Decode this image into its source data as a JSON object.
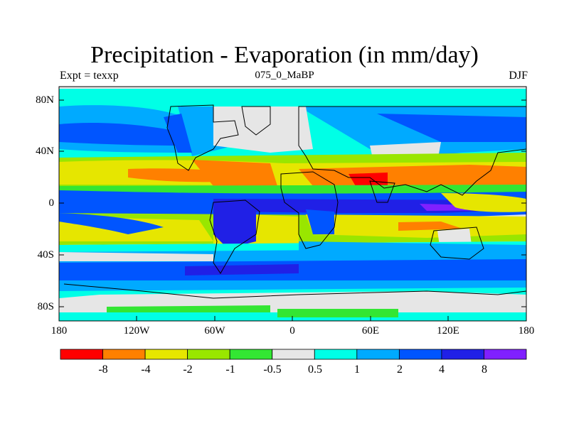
{
  "title": "Precipitation - Evaporation (in mm/day)",
  "subtitle_left": "Expt = texxp",
  "subtitle_center": "075_0_MaBP",
  "subtitle_right": "DJF",
  "lat_ticks": [
    "80N",
    "40N",
    "0",
    "40S",
    "80S"
  ],
  "lon_ticks": [
    "180",
    "120W",
    "60W",
    "0",
    "60E",
    "120E",
    "180"
  ],
  "colorbar": {
    "colors": [
      "#ff0000",
      "#ff8000",
      "#e6e600",
      "#99e600",
      "#33e633",
      "#e6e6e6",
      "#00ffe6",
      "#00aaff",
      "#0055ff",
      "#2020e6",
      "#8020ff"
    ],
    "labels": [
      "-8",
      "-4",
      "-2",
      "-1",
      "-0.5",
      "0.5",
      "1",
      "2",
      "4",
      "8"
    ]
  },
  "map_colors": {
    "land_outline": "#000000",
    "red": "#ff0000",
    "orange": "#ff8000",
    "yellow": "#e6e600",
    "lime": "#99e600",
    "green": "#33e633",
    "gray": "#e6e6e6",
    "cyan": "#00ffe6",
    "sky": "#00aaff",
    "blue": "#0055ff",
    "navy": "#2020e6",
    "purple": "#8020ff"
  }
}
